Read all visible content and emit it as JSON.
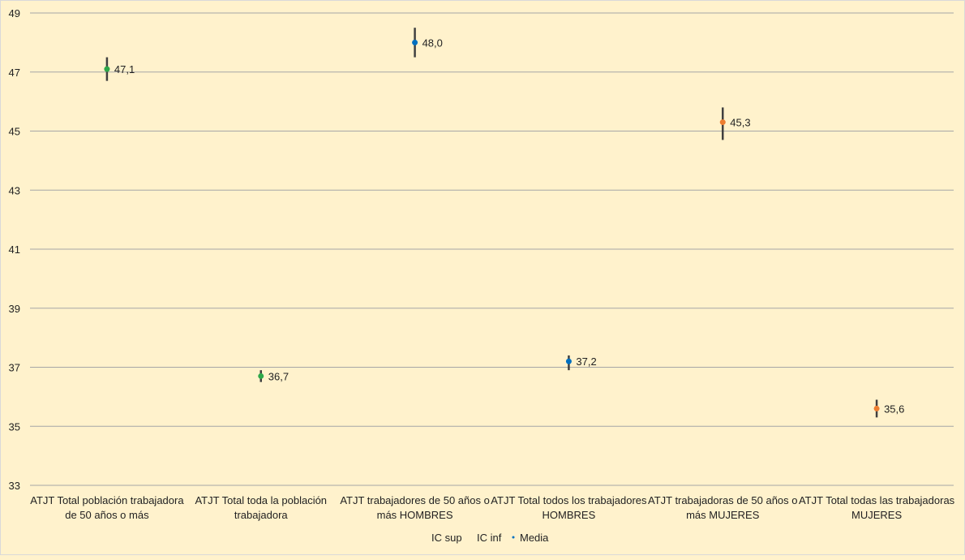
{
  "chart_data": {
    "type": "scatter",
    "title": "",
    "xlabel": "",
    "ylabel": "",
    "ylim": [
      33,
      49
    ],
    "yticks": [
      33,
      35,
      37,
      39,
      41,
      43,
      45,
      47,
      49
    ],
    "grid": true,
    "legend_position": "bottom",
    "legend": [
      "IC sup",
      "IC inf",
      "Media"
    ],
    "categories": [
      [
        "ATJT Total población trabajadora",
        "de 50 años o más"
      ],
      [
        "ATJT Total toda la población",
        "trabajadora"
      ],
      [
        "ATJT trabajadores de 50 años o",
        "más HOMBRES"
      ],
      [
        "ATJT Total todos los trabajadores",
        "HOMBRES"
      ],
      [
        "ATJT trabajadoras de 50 años o",
        "más MUJERES"
      ],
      [
        "ATJT Total todas las trabajadoras",
        "MUJERES"
      ]
    ],
    "series": [
      {
        "name": "IC sup",
        "values": [
          47.5,
          36.9,
          48.5,
          37.4,
          45.8,
          35.9
        ]
      },
      {
        "name": "IC inf",
        "values": [
          46.7,
          36.5,
          47.5,
          36.9,
          44.7,
          35.3
        ]
      },
      {
        "name": "Media",
        "values": [
          47.1,
          36.7,
          48.0,
          37.2,
          45.3,
          35.6
        ]
      }
    ],
    "data_labels": [
      "47,1",
      "36,7",
      "48,0",
      "37,2",
      "45,3",
      "35,6"
    ],
    "point_colors": [
      "#2ea84a",
      "#2ea84a",
      "#0070c0",
      "#0070c0",
      "#ed7d31",
      "#ed7d31"
    ],
    "errorbar_color": "#404040",
    "grid_color": "#a6a6a6"
  }
}
